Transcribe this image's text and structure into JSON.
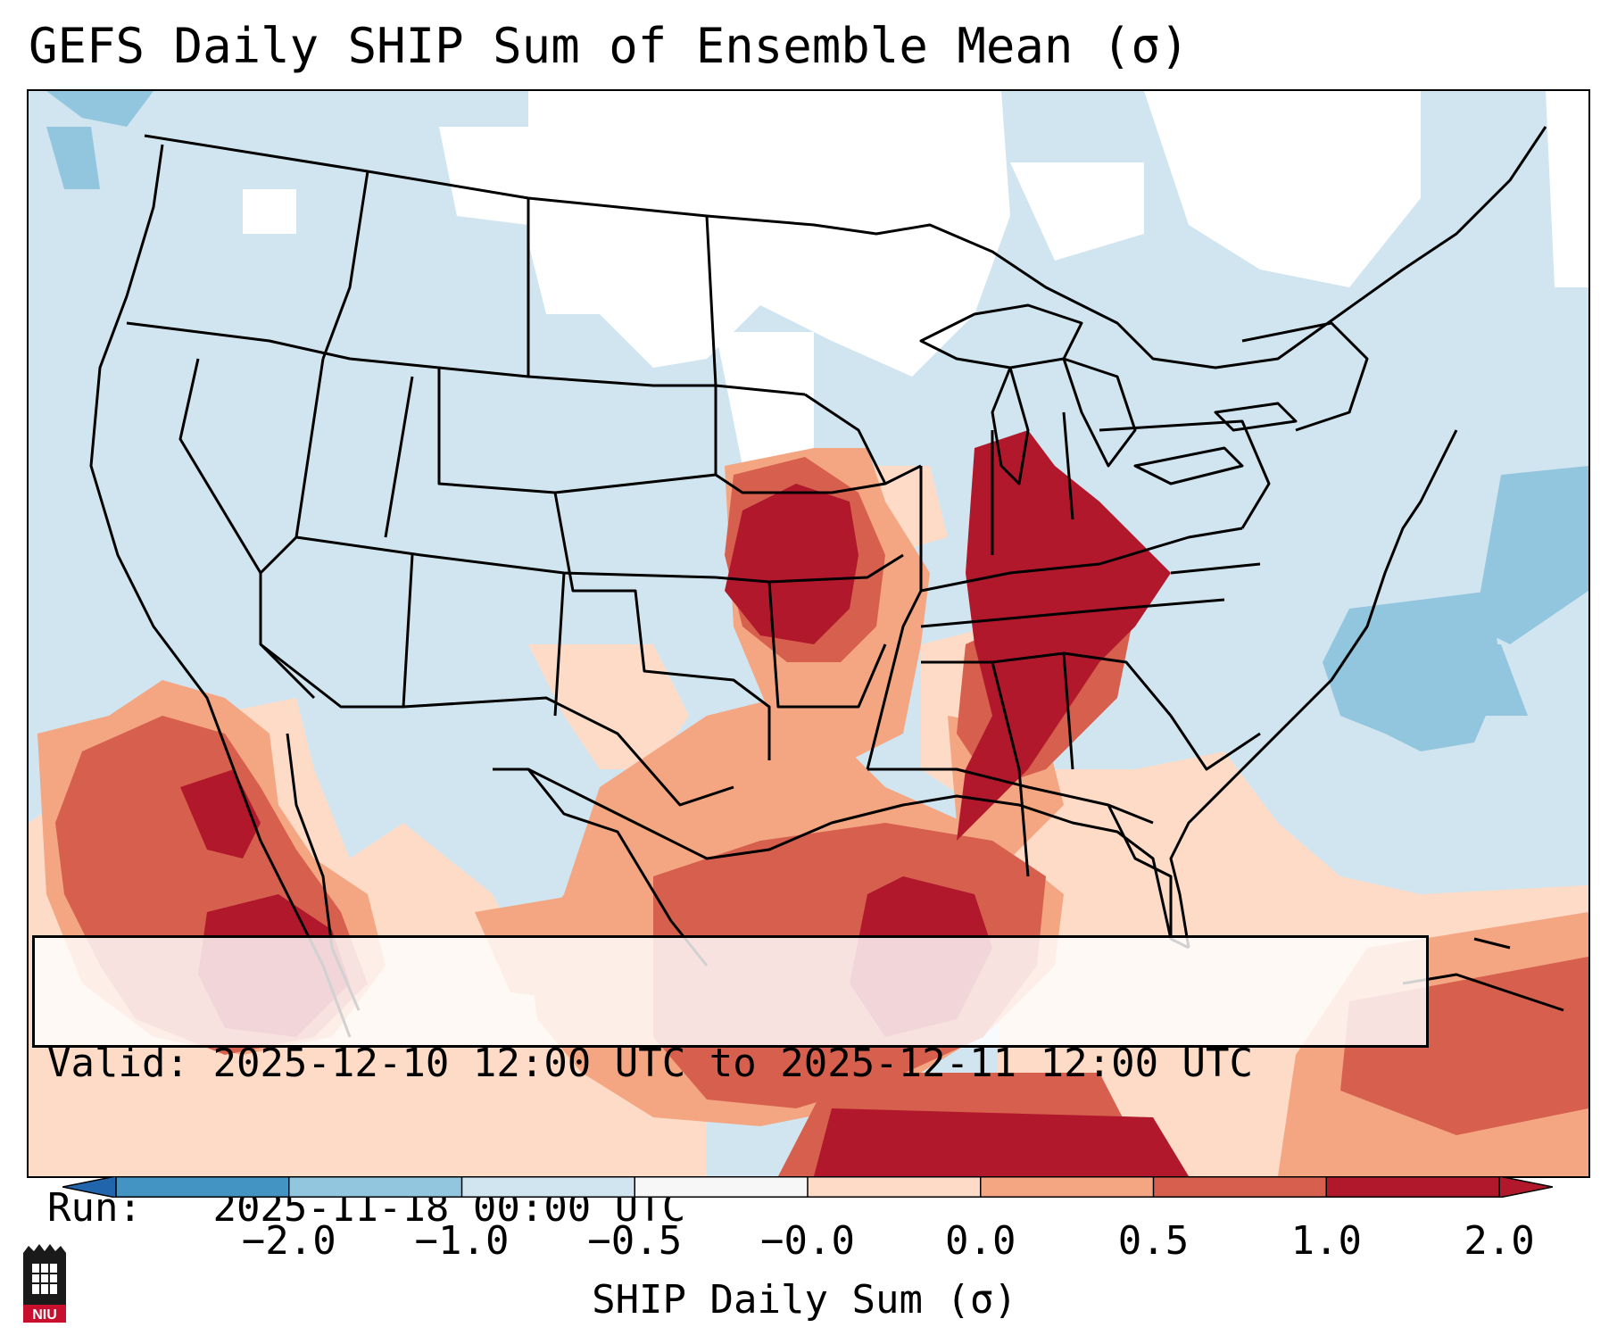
{
  "title": "GEFS Daily SHIP Sum of Ensemble Mean (σ)",
  "info": {
    "valid_label": "Valid:",
    "valid_value": "2025-12-10 12:00 UTC to 2025-12-11 12:00 UTC",
    "run_label": "Run:",
    "run_value": "2025-11-18 00:00 UTC"
  },
  "colorbar": {
    "label": "SHIP Daily Sum (σ)",
    "ticks": [
      "−2.0",
      "−1.0",
      "−0.5",
      "−0.0",
      "0.0",
      "0.5",
      "1.0",
      "2.0"
    ],
    "colors": [
      "#4393c3",
      "#92c5de",
      "#d1e5f0",
      "#f7f7f7",
      "#fddbc7",
      "#f4a582",
      "#d6604d",
      "#b2182b"
    ],
    "extend": "both",
    "under_color": "#2166ac",
    "over_color": "#b2182b"
  },
  "logo": {
    "text": "NIU",
    "icon": "university-logo-icon"
  },
  "map": {
    "projection": "lambert-conformal",
    "region": "CONUS",
    "shading_classes": {
      "strong_negative": "#92c5de",
      "neutral_negative": "#d1e5f0",
      "near_zero": "#ffffff",
      "weak_positive": "#fddbc7",
      "moderate_positive": "#f4a582",
      "high_positive": "#d6604d",
      "very_high_positive": "#b2182b"
    }
  }
}
